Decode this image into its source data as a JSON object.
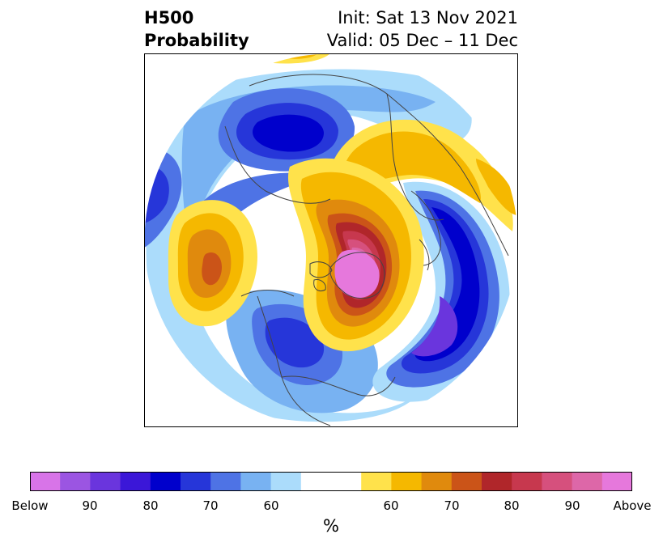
{
  "title": {
    "line1_left": "H500",
    "line2_left": "Probability",
    "line1_right": "Init: Sat 13 Nov 2021",
    "line2_right": "Valid: 05 Dec – 11 Dec"
  },
  "colorbar": {
    "units": "%",
    "colors": [
      "#d874e8",
      "#9b55e2",
      "#6a35dd",
      "#3b17d8",
      "#0000cc",
      "#2636d9",
      "#4e73e5",
      "#78b2f2",
      "#abdcfb",
      "#ffffff",
      "#ffffff",
      "#ffe24b",
      "#f5b800",
      "#e08a0d",
      "#cb5418",
      "#b0262a",
      "#c7384e",
      "#d6507d",
      "#dd67a8",
      "#e678dc"
    ],
    "tick_labels": [
      "Below",
      "90",
      "80",
      "70",
      "60",
      "60",
      "70",
      "80",
      "90",
      "Above"
    ]
  },
  "map": {
    "colors": {
      "light_blue": "#abdcfb",
      "sky_blue": "#78b2f2",
      "blue": "#4e73e5",
      "royal_blue": "#2636d9",
      "deep_blue": "#0000cc",
      "indigo": "#3b17d8",
      "violet": "#6a35dd",
      "yellow": "#ffe24b",
      "gold": "#f5b800",
      "orange": "#e08a0d",
      "dark_orange": "#cb5418",
      "red": "#b0262a",
      "rose": "#c7384e",
      "pink": "#d6507d",
      "magenta": "#dd67a8",
      "orchid": "#e678dc",
      "coast": "#444444"
    }
  }
}
